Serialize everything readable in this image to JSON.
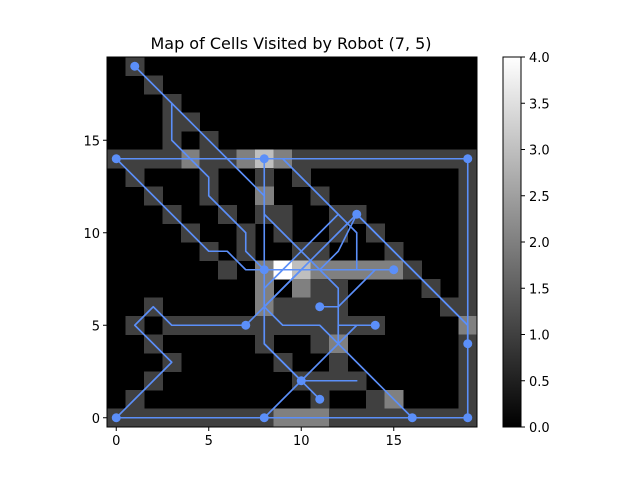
{
  "chart_data": {
    "type": "heatmap",
    "title": "Map of Cells Visited by Robot (7, 5)",
    "xlabel": "",
    "ylabel": "",
    "xlim": [
      -0.5,
      19.5
    ],
    "ylim": [
      -0.5,
      19.5
    ],
    "x_ticks": [
      0,
      5,
      10,
      15
    ],
    "y_ticks": [
      0,
      5,
      10,
      15
    ],
    "grid": false,
    "colormap": "gray",
    "colorbar": {
      "min": 0.0,
      "max": 4.0,
      "ticks": [
        "0.0",
        "0.5",
        "1.0",
        "1.5",
        "2.0",
        "2.5",
        "3.0",
        "3.5",
        "4.0"
      ]
    },
    "path_color": "#5b8ff9",
    "cells": [
      [
        1,
        19,
        1
      ],
      [
        2,
        18,
        1
      ],
      [
        3,
        17,
        1
      ],
      [
        3,
        16,
        1
      ],
      [
        4,
        16,
        1
      ],
      [
        5,
        15,
        1
      ],
      [
        3,
        15,
        1
      ],
      [
        4,
        14,
        2
      ],
      [
        6,
        14,
        1
      ],
      [
        7,
        14,
        2
      ],
      [
        8,
        14,
        3
      ],
      [
        9,
        14,
        2
      ],
      [
        0,
        14,
        1
      ],
      [
        1,
        14,
        1
      ],
      [
        2,
        14,
        1
      ],
      [
        3,
        14,
        1
      ],
      [
        5,
        14,
        1
      ],
      [
        10,
        14,
        1
      ],
      [
        11,
        14,
        1
      ],
      [
        12,
        14,
        1
      ],
      [
        13,
        14,
        1
      ],
      [
        14,
        14,
        1
      ],
      [
        15,
        14,
        1
      ],
      [
        16,
        14,
        1
      ],
      [
        17,
        14,
        1
      ],
      [
        18,
        14,
        1
      ],
      [
        19,
        14,
        1
      ],
      [
        1,
        13,
        1
      ],
      [
        5,
        13,
        1
      ],
      [
        8,
        13,
        1
      ],
      [
        10,
        13,
        1
      ],
      [
        19,
        13,
        1
      ],
      [
        2,
        12,
        1
      ],
      [
        5,
        12,
        1
      ],
      [
        8,
        12,
        2
      ],
      [
        11,
        12,
        1
      ],
      [
        19,
        12,
        1
      ],
      [
        3,
        11,
        1
      ],
      [
        6,
        11,
        1
      ],
      [
        8,
        11,
        1
      ],
      [
        9,
        11,
        1
      ],
      [
        12,
        11,
        1
      ],
      [
        13,
        11,
        1
      ],
      [
        19,
        11,
        1
      ],
      [
        4,
        10,
        1
      ],
      [
        7,
        10,
        1
      ],
      [
        9,
        10,
        1
      ],
      [
        12,
        10,
        1
      ],
      [
        14,
        10,
        1
      ],
      [
        19,
        10,
        1
      ],
      [
        5,
        9,
        1
      ],
      [
        7,
        9,
        1
      ],
      [
        10,
        9,
        1
      ],
      [
        11,
        9,
        1
      ],
      [
        15,
        9,
        1
      ],
      [
        19,
        9,
        1
      ],
      [
        6,
        8,
        1
      ],
      [
        8,
        8,
        2
      ],
      [
        9,
        8,
        4
      ],
      [
        10,
        8,
        3
      ],
      [
        11,
        8,
        2
      ],
      [
        12,
        8,
        2
      ],
      [
        13,
        8,
        2
      ],
      [
        14,
        8,
        2
      ],
      [
        15,
        8,
        2
      ],
      [
        16,
        8,
        1
      ],
      [
        19,
        8,
        1
      ],
      [
        8,
        7,
        2
      ],
      [
        10,
        7,
        2
      ],
      [
        11,
        7,
        1
      ],
      [
        12,
        7,
        1
      ],
      [
        17,
        7,
        1
      ],
      [
        19,
        7,
        1
      ],
      [
        2,
        6,
        1
      ],
      [
        8,
        6,
        2
      ],
      [
        9,
        6,
        1
      ],
      [
        10,
        6,
        1
      ],
      [
        11,
        6,
        1
      ],
      [
        12,
        6,
        1
      ],
      [
        18,
        6,
        1
      ],
      [
        19,
        6,
        1
      ],
      [
        1,
        5,
        1
      ],
      [
        3,
        5,
        1
      ],
      [
        4,
        5,
        1
      ],
      [
        5,
        5,
        1
      ],
      [
        6,
        5,
        1
      ],
      [
        7,
        5,
        1
      ],
      [
        8,
        5,
        1
      ],
      [
        9,
        5,
        1
      ],
      [
        10,
        5,
        1
      ],
      [
        11,
        5,
        1
      ],
      [
        12,
        5,
        1
      ],
      [
        13,
        5,
        1
      ],
      [
        14,
        5,
        1
      ],
      [
        19,
        5,
        2
      ],
      [
        2,
        4,
        1
      ],
      [
        8,
        4,
        1
      ],
      [
        11,
        4,
        1
      ],
      [
        12,
        4,
        2
      ],
      [
        19,
        4,
        1
      ],
      [
        3,
        3,
        1
      ],
      [
        9,
        3,
        1
      ],
      [
        12,
        3,
        1
      ],
      [
        19,
        3,
        1
      ],
      [
        2,
        2,
        1
      ],
      [
        10,
        2,
        1
      ],
      [
        11,
        2,
        1
      ],
      [
        12,
        2,
        1
      ],
      [
        13,
        2,
        1
      ],
      [
        19,
        2,
        1
      ],
      [
        1,
        1,
        1
      ],
      [
        11,
        1,
        1
      ],
      [
        14,
        1,
        1
      ],
      [
        15,
        1,
        2
      ],
      [
        19,
        1,
        1
      ],
      [
        0,
        0,
        1
      ],
      [
        1,
        0,
        1
      ],
      [
        2,
        0,
        1
      ],
      [
        3,
        0,
        1
      ],
      [
        4,
        0,
        1
      ],
      [
        5,
        0,
        1
      ],
      [
        6,
        0,
        1
      ],
      [
        7,
        0,
        1
      ],
      [
        8,
        0,
        1
      ],
      [
        9,
        0,
        2
      ],
      [
        10,
        0,
        2
      ],
      [
        11,
        0,
        2
      ],
      [
        12,
        0,
        1
      ],
      [
        13,
        0,
        1
      ],
      [
        14,
        0,
        1
      ],
      [
        15,
        0,
        1
      ],
      [
        16,
        0,
        1
      ],
      [
        17,
        0,
        1
      ],
      [
        18,
        0,
        1
      ],
      [
        19,
        0,
        1
      ]
    ],
    "paths": [
      [
        [
          1,
          19
        ],
        [
          2,
          18
        ],
        [
          3,
          17
        ],
        [
          3,
          15
        ],
        [
          4,
          14
        ],
        [
          5,
          13
        ],
        [
          5,
          12
        ],
        [
          6,
          11
        ],
        [
          7,
          10
        ],
        [
          7,
          9
        ],
        [
          8,
          8
        ],
        [
          9,
          8
        ],
        [
          10,
          8
        ],
        [
          15,
          8
        ]
      ],
      [
        [
          3,
          17
        ],
        [
          4,
          16
        ],
        [
          5,
          15
        ],
        [
          6,
          14
        ],
        [
          7,
          13
        ],
        [
          8,
          12
        ],
        [
          8,
          11
        ],
        [
          9,
          10
        ],
        [
          10,
          9
        ],
        [
          11,
          8
        ],
        [
          12,
          7
        ],
        [
          12,
          6
        ],
        [
          12,
          4
        ],
        [
          13,
          3
        ],
        [
          14,
          2
        ],
        [
          15,
          1
        ],
        [
          16,
          0
        ]
      ],
      [
        [
          0,
          14
        ],
        [
          19,
          14
        ],
        [
          19,
          0
        ],
        [
          0,
          0
        ]
      ],
      [
        [
          0,
          0
        ],
        [
          1,
          1
        ],
        [
          2,
          2
        ],
        [
          3,
          3
        ],
        [
          1,
          5
        ],
        [
          2,
          6
        ],
        [
          3,
          5
        ],
        [
          7,
          5
        ],
        [
          8,
          6
        ],
        [
          9,
          7
        ],
        [
          10,
          8
        ],
        [
          11,
          9
        ],
        [
          12,
          10
        ],
        [
          13,
          11
        ],
        [
          14,
          10
        ],
        [
          15,
          9
        ],
        [
          16,
          8
        ],
        [
          17,
          7
        ],
        [
          18,
          6
        ],
        [
          19,
          5
        ],
        [
          19,
          4
        ]
      ],
      [
        [
          0,
          14
        ],
        [
          1,
          13
        ],
        [
          2,
          12
        ],
        [
          3,
          11
        ],
        [
          4,
          10
        ],
        [
          5,
          9
        ],
        [
          6,
          9
        ],
        [
          7,
          8
        ],
        [
          8,
          8
        ]
      ],
      [
        [
          8,
          14
        ],
        [
          8,
          5
        ],
        [
          8,
          4
        ],
        [
          9,
          3
        ],
        [
          10,
          2
        ],
        [
          11,
          1
        ]
      ],
      [
        [
          8,
          14
        ],
        [
          9,
          14
        ],
        [
          10,
          13
        ],
        [
          11,
          12
        ],
        [
          12,
          11
        ],
        [
          13,
          10
        ],
        [
          13,
          8
        ],
        [
          14,
          8
        ],
        [
          15,
          8
        ]
      ],
      [
        [
          8,
          0
        ],
        [
          9,
          1
        ],
        [
          10,
          2
        ],
        [
          11,
          3
        ],
        [
          12,
          4
        ],
        [
          12,
          5
        ],
        [
          13,
          5
        ],
        [
          14,
          5
        ]
      ],
      [
        [
          10,
          2
        ],
        [
          11,
          2
        ],
        [
          12,
          2
        ],
        [
          13,
          2
        ],
        [
          12,
          2
        ],
        [
          11,
          2
        ],
        [
          10,
          2
        ],
        [
          9,
          3
        ],
        [
          8,
          4
        ],
        [
          8,
          6
        ],
        [
          9,
          7
        ],
        [
          10,
          8
        ],
        [
          11,
          8
        ],
        [
          12,
          9
        ],
        [
          13,
          11
        ]
      ],
      [
        [
          11,
          6
        ],
        [
          12,
          6
        ],
        [
          13,
          7
        ],
        [
          14,
          8
        ],
        [
          15,
          8
        ]
      ],
      [
        [
          13,
          11
        ],
        [
          14,
          10
        ],
        [
          15,
          9
        ],
        [
          16,
          8
        ],
        [
          17,
          7
        ],
        [
          18,
          6
        ],
        [
          19,
          5
        ],
        [
          19,
          4
        ]
      ],
      [
        [
          12,
          11
        ],
        [
          11,
          10
        ],
        [
          10,
          9
        ],
        [
          9,
          8
        ],
        [
          8,
          7
        ],
        [
          8,
          6
        ],
        [
          9,
          5
        ],
        [
          10,
          5
        ],
        [
          11,
          5
        ],
        [
          12,
          4
        ],
        [
          13,
          5
        ],
        [
          14,
          5
        ]
      ]
    ],
    "markers": [
      [
        1,
        19
      ],
      [
        0,
        14
      ],
      [
        8,
        14
      ],
      [
        19,
        14
      ],
      [
        13,
        11
      ],
      [
        8,
        8
      ],
      [
        15,
        8
      ],
      [
        11,
        6
      ],
      [
        7,
        5
      ],
      [
        14,
        5
      ],
      [
        19,
        4
      ],
      [
        10,
        2
      ],
      [
        11,
        1
      ],
      [
        0,
        0
      ],
      [
        8,
        0
      ],
      [
        16,
        0
      ],
      [
        19,
        0
      ]
    ]
  }
}
